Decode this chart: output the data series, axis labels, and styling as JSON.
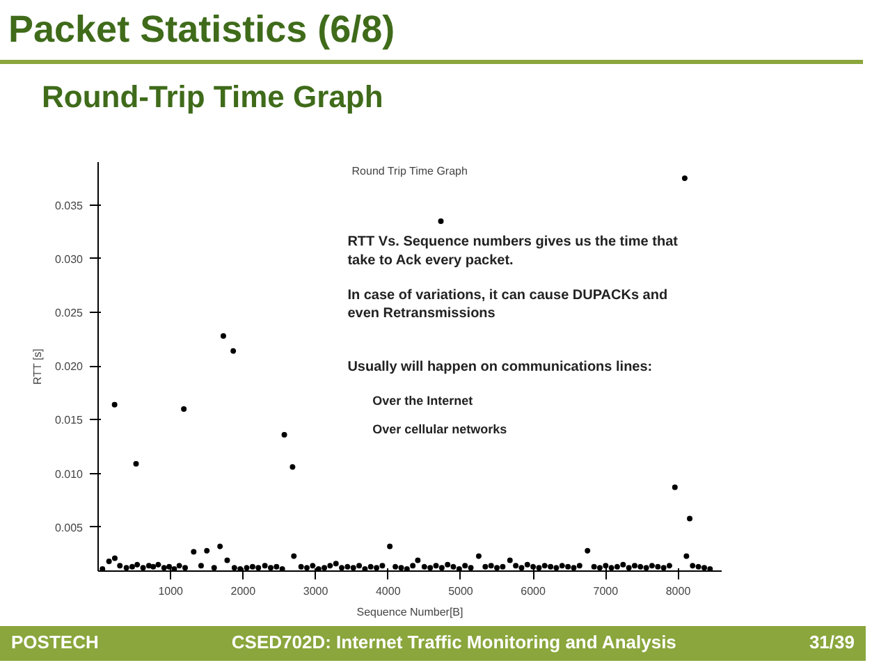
{
  "chart_data": {
    "type": "scatter",
    "title": "Packet Statistics (6/8)",
    "subtitle": "Round-Trip Time Graph",
    "annotations": [
      "Round Trip Time Graph",
      "RTT Vs. Sequence numbers gives us the time that take to Ack every packet.",
      "In case of variations, it can cause DUPACKs and even Retransmissions",
      "Usually will happen on communications lines:",
      "Over the Internet",
      "Over cellular networks",
      "POSTECH",
      "CSED702D: Internet Traffic Monitoring and Analysis",
      "31/39"
    ],
    "xlabel": "Sequence Number[B]",
    "ylabel": "RTT [s]",
    "marker": "circle",
    "grid": false,
    "xlim": [
      0,
      8600
    ],
    "ylim": [
      0.0009,
      0.039
    ],
    "xticks": [
      1000,
      2000,
      3000,
      4000,
      5000,
      6000,
      7000,
      8000
    ],
    "yticks": [
      {
        "value": 0.005,
        "label": "0.005"
      },
      {
        "value": 0.01,
        "label": "0.010"
      },
      {
        "value": 0.015,
        "label": "0.015"
      },
      {
        "value": 0.02,
        "label": "0.020"
      },
      {
        "value": 0.025,
        "label": "0.025"
      },
      {
        "value": 0.03,
        "label": "0.030"
      },
      {
        "value": 0.035,
        "label": "0.035"
      }
    ],
    "series": [
      {
        "color": "#000000",
        "x": [
          60,
          150,
          230,
          300,
          390,
          470,
          540,
          620,
          700,
          760,
          830,
          910,
          980,
          1050,
          1120,
          1200,
          1318,
          1420,
          1500,
          1600,
          1682,
          1780,
          1880,
          1960,
          2050,
          2130,
          2210,
          2300,
          2380,
          2460,
          2540,
          2700,
          2800,
          2880,
          2960,
          3040,
          3120,
          3200,
          3280,
          3360,
          3440,
          3520,
          3600,
          3680,
          3760,
          3840,
          3920,
          4023,
          4100,
          4180,
          4260,
          4340,
          4409,
          4500,
          4580,
          4660,
          4740,
          4820,
          4900,
          4980,
          5060,
          5140,
          5250,
          5340,
          5420,
          5500,
          5580,
          5680,
          5760,
          5840,
          5920,
          6000,
          6080,
          6160,
          6240,
          6320,
          6400,
          6480,
          6560,
          6640,
          6750,
          6840,
          6920,
          7000,
          7080,
          7160,
          7240,
          7320,
          7400,
          7480,
          7560,
          7640,
          7720,
          7800,
          7880,
          8114,
          8200,
          8280,
          8360,
          8440,
          227,
          523,
          1182,
          1727,
          1864,
          2568,
          2682,
          4727,
          8091,
          7955,
          8159
        ],
        "values": [
          0.0011,
          0.0018,
          0.0021,
          0.0014,
          0.0012,
          0.0013,
          0.0015,
          0.0012,
          0.0014,
          0.0013,
          0.0015,
          0.0012,
          0.0013,
          0.0011,
          0.0014,
          0.0012,
          0.0027,
          0.0014,
          0.0028,
          0.0012,
          0.0032,
          0.0019,
          0.0012,
          0.0011,
          0.0012,
          0.0013,
          0.0012,
          0.0014,
          0.0012,
          0.0013,
          0.0011,
          0.0023,
          0.0013,
          0.0012,
          0.0014,
          0.0011,
          0.0012,
          0.0014,
          0.0016,
          0.0012,
          0.0013,
          0.0012,
          0.0014,
          0.0011,
          0.0013,
          0.0012,
          0.0014,
          0.0032,
          0.0013,
          0.0012,
          0.0011,
          0.0014,
          0.0019,
          0.0013,
          0.0012,
          0.0014,
          0.0012,
          0.0015,
          0.0013,
          0.0011,
          0.0014,
          0.0012,
          0.0023,
          0.0013,
          0.0014,
          0.0012,
          0.0013,
          0.0019,
          0.0014,
          0.0012,
          0.0015,
          0.0013,
          0.0012,
          0.0014,
          0.0013,
          0.0012,
          0.0014,
          0.0013,
          0.0012,
          0.0014,
          0.0028,
          0.0013,
          0.0012,
          0.0014,
          0.0012,
          0.0013,
          0.0015,
          0.0012,
          0.0014,
          0.0013,
          0.0012,
          0.0014,
          0.0013,
          0.0012,
          0.0014,
          0.0023,
          0.0014,
          0.0013,
          0.0012,
          0.0011,
          0.0164,
          0.0109,
          0.016,
          0.0228,
          0.0214,
          0.0136,
          0.0106,
          0.0335,
          0.0375,
          0.0087,
          0.0058
        ]
      }
    ]
  }
}
